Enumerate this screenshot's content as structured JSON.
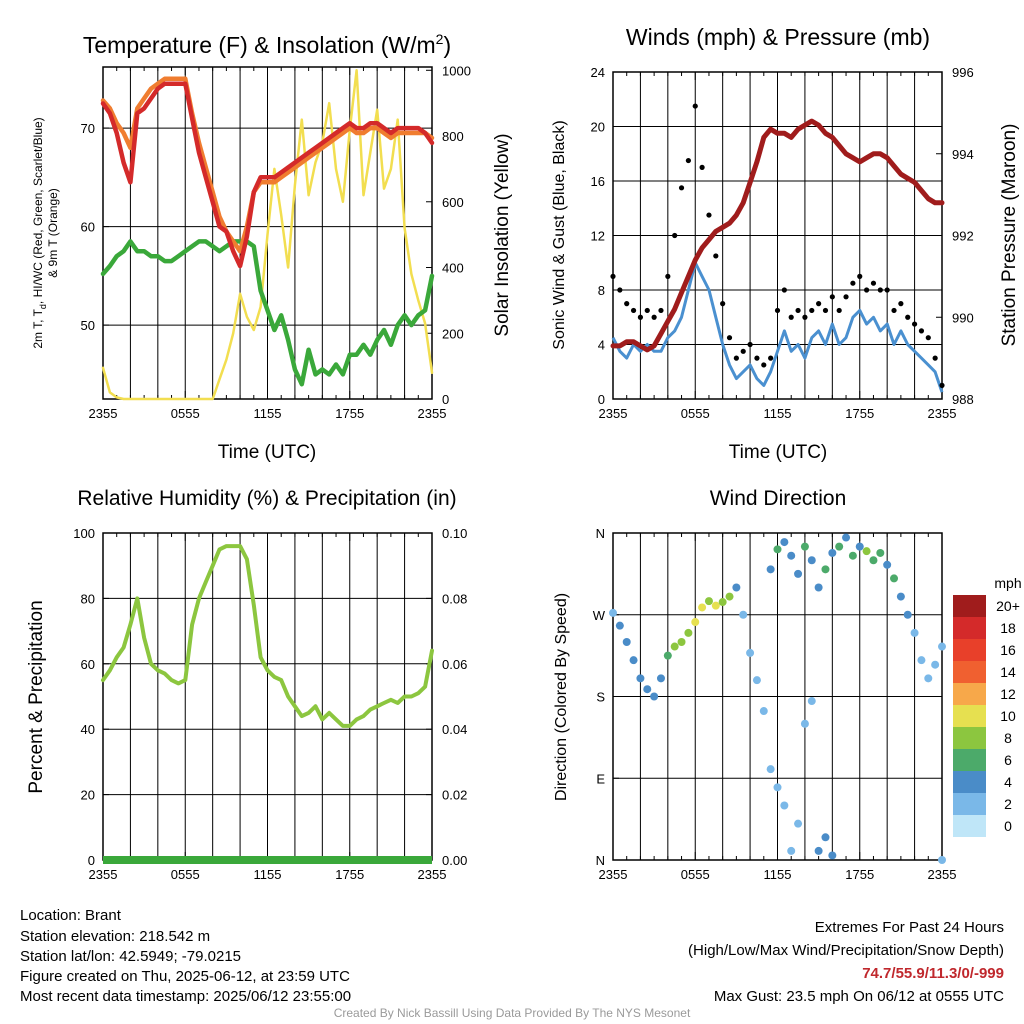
{
  "chart_data": [
    {
      "id": "temp",
      "type": "line",
      "title": "Temperature (F) & Insolation (W/m",
      "title_sup": "2",
      "title_end": ")",
      "xlabel": "Time (UTC)",
      "ylabel_line1": "2m T, T",
      "ylabel_sub": "d",
      "ylabel_line1b": ", HI/WC (Red, Green, Scarlet/Blue)",
      "ylabel_line2": "& 9m T (Orange)",
      "ylabel_right": "Solar Insolation (Yellow)",
      "x_ticks": [
        "2355",
        "0555",
        "1155",
        "1755",
        "2355"
      ],
      "ylim": [
        42.5,
        76.2
      ],
      "y_ticks": [
        50,
        60,
        70
      ],
      "y_right_lim": [
        0,
        1010
      ],
      "y_right_ticks": [
        0,
        200,
        400,
        600,
        800,
        1000
      ],
      "x": [
        0,
        0.5,
        1,
        1.5,
        2,
        2.5,
        3,
        3.5,
        4,
        4.5,
        5,
        5.5,
        6,
        6.5,
        7,
        7.5,
        8,
        8.5,
        9,
        9.5,
        10,
        10.5,
        11,
        11.5,
        12,
        12.5,
        13,
        13.5,
        14,
        14.5,
        15,
        15.5,
        16,
        16.5,
        17,
        17.5,
        18,
        18.5,
        19,
        19.5,
        20,
        20.5,
        21,
        21.5,
        22,
        22.5,
        23,
        23.5,
        24
      ],
      "series": [
        {
          "name": "2m T",
          "color": "#d42a2a",
          "values": [
            72.5,
            71.5,
            69.5,
            66.5,
            64.5,
            71.5,
            72.0,
            73.0,
            74.0,
            74.5,
            74.5,
            74.5,
            74.5,
            71.0,
            67.5,
            65.0,
            62.5,
            60.0,
            59.5,
            57.5,
            56.0,
            59.0,
            63.5,
            65.0,
            65.0,
            65.0,
            65.5,
            66.0,
            66.5,
            67.0,
            67.5,
            68.0,
            68.5,
            69.0,
            69.5,
            70.0,
            70.5,
            70.0,
            70.0,
            70.5,
            70.5,
            70.0,
            69.5,
            70.0,
            70.0,
            70.0,
            70.0,
            69.5,
            68.5
          ]
        },
        {
          "name": "9m T",
          "color": "#f07d30",
          "values": [
            72.8,
            72.0,
            70.5,
            69.5,
            68.0,
            72.0,
            73.0,
            74.0,
            74.5,
            75.0,
            75.0,
            75.0,
            75.0,
            71.5,
            68.5,
            66.0,
            63.5,
            61.0,
            59.5,
            58.5,
            57.5,
            60.0,
            63.5,
            64.5,
            64.5,
            64.5,
            65.0,
            65.5,
            66.0,
            66.5,
            67.0,
            67.5,
            68.0,
            68.5,
            69.0,
            69.5,
            70.0,
            69.5,
            69.5,
            70.0,
            70.0,
            69.5,
            69.0,
            69.5,
            69.5,
            69.5,
            69.5,
            69.5,
            69.0
          ]
        },
        {
          "name": "Td",
          "color": "#3aa83a",
          "values": [
            55.2,
            56.0,
            57.0,
            57.5,
            58.5,
            57.5,
            57.5,
            57.0,
            57.0,
            56.5,
            56.5,
            57.0,
            57.5,
            58.0,
            58.5,
            58.5,
            58.0,
            57.5,
            58.0,
            58.5,
            58.5,
            58.5,
            58.0,
            53.5,
            51.5,
            49.5,
            51.0,
            48.5,
            45.5,
            44.0,
            47.5,
            45.0,
            45.5,
            45.0,
            46.0,
            45.0,
            47.0,
            47.0,
            48.0,
            47.0,
            48.5,
            49.5,
            48.0,
            50.0,
            51.0,
            50.0,
            51.0,
            51.5,
            55.0
          ]
        },
        {
          "name": "Solar Insolation",
          "color": "#f2de50",
          "axis": "right",
          "values": [
            95,
            20,
            5,
            0,
            0,
            0,
            0,
            0,
            0,
            0,
            0,
            0,
            0,
            0,
            0,
            0,
            0,
            60,
            120,
            200,
            320,
            250,
            210,
            280,
            500,
            700,
            560,
            400,
            650,
            850,
            620,
            720,
            780,
            900,
            700,
            600,
            820,
            1000,
            620,
            750,
            880,
            640,
            700,
            850,
            520,
            380,
            300,
            230,
            80
          ]
        }
      ]
    },
    {
      "id": "wind",
      "type": "scatter",
      "title": "Winds (mph) & Pressure (mb)",
      "xlabel": "Time (UTC)",
      "ylabel": "Sonic Wind & Gust (Blue, Black)",
      "ylabel_right": "Station Pressure (Maroon)",
      "x_ticks": [
        "2355",
        "0555",
        "1155",
        "1755",
        "2355"
      ],
      "ylim": [
        0,
        24
      ],
      "y_ticks": [
        0,
        4,
        8,
        12,
        16,
        20,
        24
      ],
      "y_right_lim": [
        988,
        996
      ],
      "y_right_ticks": [
        988,
        990,
        992,
        994,
        996
      ],
      "x": [
        0,
        0.5,
        1,
        1.5,
        2,
        2.5,
        3,
        3.5,
        4,
        4.5,
        5,
        5.5,
        6,
        6.5,
        7,
        7.5,
        8,
        8.5,
        9,
        9.5,
        10,
        10.5,
        11,
        11.5,
        12,
        12.5,
        13,
        13.5,
        14,
        14.5,
        15,
        15.5,
        16,
        16.5,
        17,
        17.5,
        18,
        18.5,
        19,
        19.5,
        20,
        20.5,
        21,
        21.5,
        22,
        22.5,
        23,
        23.5,
        24
      ],
      "series": [
        {
          "name": "Sonic Wind",
          "color": "#4a90d0",
          "values": [
            4.5,
            3.5,
            3.0,
            4.0,
            3.5,
            4.0,
            3.5,
            3.5,
            4.5,
            5.0,
            6.0,
            8.0,
            10.0,
            9.0,
            8.0,
            6.0,
            4.0,
            2.5,
            1.5,
            2.0,
            2.5,
            1.5,
            1.0,
            2.0,
            3.5,
            5.0,
            3.5,
            4.0,
            3.0,
            4.5,
            5.0,
            4.0,
            5.5,
            4.0,
            4.5,
            6.0,
            6.5,
            5.5,
            6.0,
            5.0,
            5.5,
            4.0,
            5.0,
            4.0,
            3.5,
            3.0,
            2.5,
            2.0,
            0.5
          ]
        },
        {
          "name": "Gust",
          "color": "#000000",
          "values": [
            9.0,
            8.0,
            7.0,
            6.5,
            6.0,
            6.5,
            6.0,
            6.5,
            9.0,
            12.0,
            15.5,
            17.5,
            21.5,
            17.0,
            13.5,
            10.5,
            7.0,
            4.5,
            3.0,
            3.5,
            4.0,
            3.0,
            2.5,
            3.0,
            6.5,
            8.0,
            6.0,
            6.5,
            6.0,
            6.5,
            7.0,
            6.5,
            7.5,
            6.5,
            7.5,
            8.5,
            9.0,
            8.0,
            8.5,
            8.0,
            8.0,
            6.5,
            7.0,
            6.0,
            5.5,
            5.0,
            4.5,
            3.0,
            1.0
          ]
        },
        {
          "name": "Station Pressure",
          "color": "#a01c1c",
          "axis": "right",
          "values": [
            989.3,
            989.3,
            989.4,
            989.4,
            989.3,
            989.2,
            989.3,
            989.6,
            989.9,
            990.2,
            990.6,
            991.0,
            991.4,
            991.7,
            991.9,
            992.1,
            992.2,
            992.3,
            992.5,
            992.8,
            993.3,
            993.8,
            994.4,
            994.6,
            994.5,
            994.5,
            994.4,
            994.6,
            994.7,
            994.8,
            994.7,
            994.5,
            994.4,
            994.2,
            994.0,
            993.9,
            993.8,
            993.9,
            994.0,
            994.0,
            993.9,
            993.7,
            993.5,
            993.4,
            993.3,
            993.1,
            992.9,
            992.8,
            992.8
          ]
        }
      ]
    },
    {
      "id": "rh",
      "type": "line",
      "title": "Relative Humidity (%) & Precipitation (in)",
      "xlabel": "",
      "ylabel": "Percent & Precipitation",
      "x_ticks": [
        "2355",
        "0555",
        "1155",
        "1755",
        "2355"
      ],
      "ylim": [
        0,
        100
      ],
      "y_ticks": [
        0,
        20,
        40,
        60,
        80,
        100
      ],
      "y_right_lim": [
        0,
        0.1
      ],
      "y_right_ticks": [
        "0.00",
        "0.02",
        "0.04",
        "0.06",
        "0.08",
        "0.10"
      ],
      "x": [
        0,
        0.5,
        1,
        1.5,
        2,
        2.5,
        3,
        3.5,
        4,
        4.5,
        5,
        5.5,
        6,
        6.5,
        7,
        7.5,
        8,
        8.5,
        9,
        9.5,
        10,
        10.5,
        11,
        11.5,
        12,
        12.5,
        13,
        13.5,
        14,
        14.5,
        15,
        15.5,
        16,
        16.5,
        17,
        17.5,
        18,
        18.5,
        19,
        19.5,
        20,
        20.5,
        21,
        21.5,
        22,
        22.5,
        23,
        23.5,
        24
      ],
      "series": [
        {
          "name": "Relative Humidity",
          "color": "#8cc63f",
          "values": [
            55,
            58,
            62,
            65,
            72,
            80,
            68,
            60,
            58,
            57,
            55,
            54,
            55,
            72,
            80,
            85,
            90,
            95,
            96,
            96,
            96,
            92,
            78,
            62,
            58,
            56,
            55,
            50,
            47,
            44,
            45,
            47,
            43,
            45,
            43,
            41,
            41,
            43,
            44,
            46,
            47,
            48,
            49,
            48,
            50,
            50,
            51,
            53,
            64
          ]
        },
        {
          "name": "Precipitation",
          "color": "#3aa83a",
          "axis": "right",
          "values": [
            0,
            0,
            0,
            0,
            0,
            0,
            0,
            0,
            0,
            0,
            0,
            0,
            0,
            0,
            0,
            0,
            0,
            0,
            0,
            0,
            0,
            0,
            0,
            0,
            0,
            0,
            0,
            0,
            0,
            0,
            0,
            0,
            0,
            0,
            0,
            0,
            0,
            0,
            0,
            0,
            0,
            0,
            0,
            0,
            0,
            0,
            0,
            0,
            0
          ]
        }
      ]
    },
    {
      "id": "dir",
      "type": "scatter",
      "title": "Wind Direction",
      "ylabel": "Direction (Colored By Speed)",
      "x_ticks": [
        "2355",
        "0555",
        "1155",
        "1755",
        "2355"
      ],
      "ylim": [
        0,
        360
      ],
      "y_ticks": [
        "N",
        "E",
        "S",
        "W",
        "N"
      ],
      "colorbar_title": "mph",
      "colorbar_labels": [
        "20+",
        "18",
        "16",
        "14",
        "12",
        "10",
        "8",
        "6",
        "4",
        "2",
        "0"
      ],
      "colorbar_colors": [
        "#a01c1c",
        "#d42a2a",
        "#e8402a",
        "#f06030",
        "#f7a84a",
        "#e6e050",
        "#8cc63f",
        "#4caa6a",
        "#4a8cc8",
        "#7ab8e8",
        "#bfe6f8"
      ],
      "points": [
        [
          0,
          272,
          2
        ],
        [
          0.5,
          258,
          3
        ],
        [
          1,
          240,
          3
        ],
        [
          1.5,
          220,
          4
        ],
        [
          2,
          200,
          4
        ],
        [
          2.5,
          188,
          4
        ],
        [
          3,
          180,
          4
        ],
        [
          3.5,
          200,
          3
        ],
        [
          4,
          225,
          5
        ],
        [
          4.5,
          235,
          7
        ],
        [
          5,
          240,
          7
        ],
        [
          5.5,
          250,
          8
        ],
        [
          6,
          262,
          9
        ],
        [
          6.5,
          278,
          10
        ],
        [
          7,
          285,
          8
        ],
        [
          7.5,
          280,
          9
        ],
        [
          8,
          284,
          8
        ],
        [
          8.5,
          290,
          7
        ],
        [
          9,
          300,
          4
        ],
        [
          9.5,
          270,
          1
        ],
        [
          10,
          228,
          1
        ],
        [
          10.5,
          198,
          1
        ],
        [
          11,
          164,
          1
        ],
        [
          11.5,
          100,
          1
        ],
        [
          12,
          80,
          1
        ],
        [
          12.5,
          60,
          1
        ],
        [
          13,
          10,
          1
        ],
        [
          13.5,
          40,
          1
        ],
        [
          14,
          150,
          1
        ],
        [
          14.5,
          175,
          1
        ],
        [
          11.5,
          320,
          4
        ],
        [
          12,
          342,
          5
        ],
        [
          12.5,
          350,
          4
        ],
        [
          13,
          335,
          3
        ],
        [
          13.5,
          315,
          4
        ],
        [
          14,
          345,
          5
        ],
        [
          14.5,
          330,
          3
        ],
        [
          15,
          300,
          4
        ],
        [
          15.5,
          320,
          6
        ],
        [
          16,
          338,
          4
        ],
        [
          16.5,
          345,
          5
        ],
        [
          17,
          355,
          4
        ],
        [
          17.5,
          335,
          6
        ],
        [
          18,
          345,
          4
        ],
        [
          18.5,
          340,
          7
        ],
        [
          19,
          330,
          6
        ],
        [
          19.5,
          338,
          5
        ],
        [
          20,
          325,
          4
        ],
        [
          20.5,
          310,
          5
        ],
        [
          21,
          290,
          4
        ],
        [
          21.5,
          270,
          3
        ],
        [
          22,
          250,
          2
        ],
        [
          22.5,
          220,
          2
        ],
        [
          23,
          200,
          2
        ],
        [
          23.5,
          215,
          2
        ],
        [
          24,
          235,
          2
        ],
        [
          15,
          10,
          4
        ],
        [
          15.5,
          25,
          3
        ],
        [
          16,
          5,
          4
        ],
        [
          24,
          0,
          1
        ]
      ]
    }
  ],
  "footer_left": {
    "location": "Location: Brant",
    "elevation": "Station elevation: 218.542 m",
    "latlon": "Station lat/lon: 42.5949; -79.0215",
    "created": "Figure created on Thu, 2025-06-12, at 23:59 UTC",
    "recent": "Most recent data timestamp: 2025/06/12 23:55:00"
  },
  "footer_right": {
    "title": "Extremes For Past 24 Hours",
    "subtitle": "(High/Low/Max Wind/Precipitation/Snow Depth)",
    "values": "74.7/55.9/11.3/0/-999",
    "gust": "Max Gust: 23.5 mph On 06/12 at 0555 UTC"
  },
  "credit": "Created By Nick Bassill Using Data Provided By The NYS Mesonet"
}
